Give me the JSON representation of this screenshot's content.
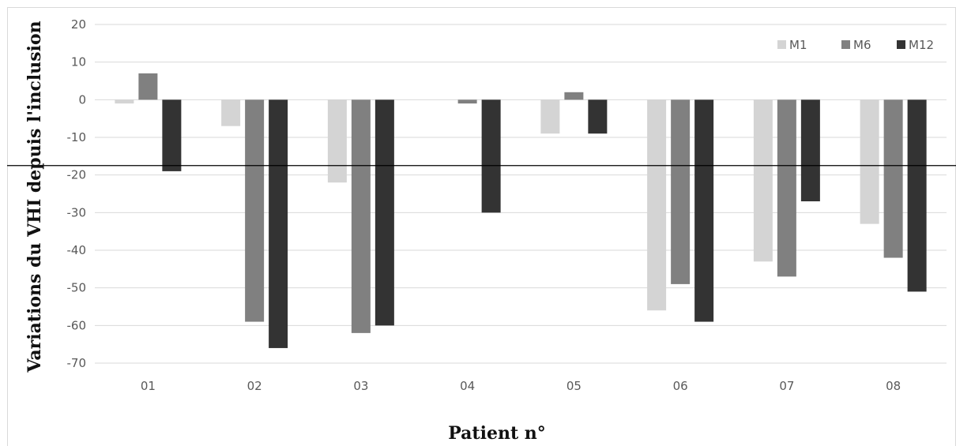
{
  "chart_data": {
    "type": "bar",
    "title": "",
    "xlabel": "Patient n°",
    "ylabel": "Variations du VHI depuis l'inclusion",
    "categories": [
      "01",
      "02",
      "03",
      "04",
      "05",
      "06",
      "07",
      "08"
    ],
    "series": [
      {
        "name": "M1",
        "color": "#d4d4d4",
        "values": [
          -1,
          -7,
          -22,
          0,
          -9,
          -56,
          -43,
          -33
        ]
      },
      {
        "name": "M6",
        "color": "#808080",
        "values": [
          7,
          -59,
          -62,
          -1,
          2,
          -49,
          -47,
          -42
        ]
      },
      {
        "name": "M12",
        "color": "#333333",
        "values": [
          -19,
          -66,
          -60,
          -30,
          -9,
          -59,
          -27,
          -51
        ]
      }
    ],
    "ylim": [
      -70,
      20
    ],
    "yticks": [
      "20",
      "10",
      "0",
      "-10",
      "-20",
      "-30",
      "-40",
      "-50",
      "-60",
      "-70"
    ],
    "reference_line": -17.5,
    "reference_line_color": "#000000",
    "grid": true,
    "grid_color": "#d9d9d9",
    "legend_position": "top-right"
  }
}
